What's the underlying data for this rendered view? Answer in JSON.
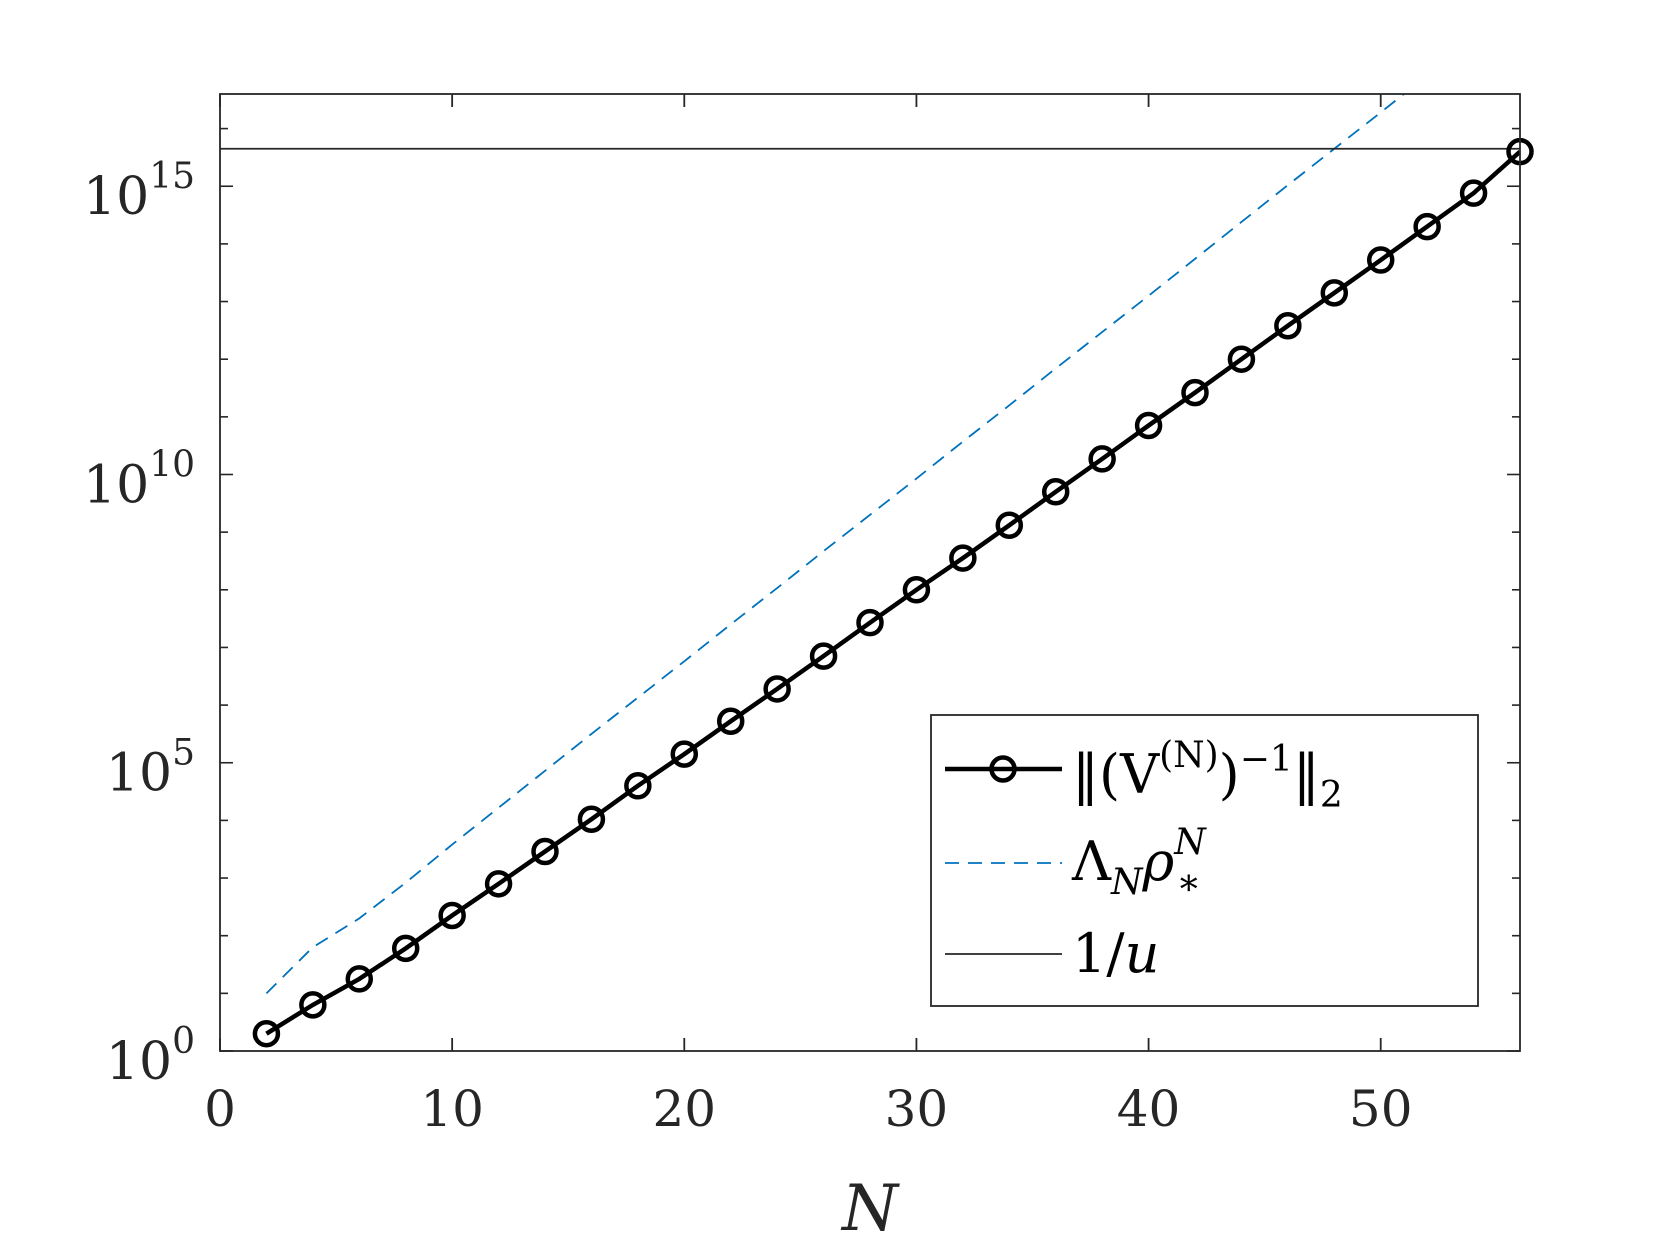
{
  "chart_data": {
    "type": "line",
    "xlabel": "N",
    "ylabel": "",
    "xlim": [
      0,
      56
    ],
    "ylim_exp": [
      0,
      16.6
    ],
    "log_y": true,
    "x_ticks": [
      0,
      10,
      20,
      30,
      40,
      50
    ],
    "y_ticks": [
      {
        "exp": 0,
        "base": "10",
        "sup": "0"
      },
      {
        "exp": 5,
        "base": "10",
        "sup": "5"
      },
      {
        "exp": 10,
        "base": "10",
        "sup": "10"
      },
      {
        "exp": 15,
        "base": "10",
        "sup": "15"
      }
    ],
    "grid": false,
    "legend_position": "lower-right",
    "series": [
      {
        "key": "inv_norm",
        "name": "‖(V(N))−1‖2",
        "label_parts": {
          "a": "‖(V",
          "sup1": "(N)",
          "b": ")",
          "sup2": "−1",
          "c": "‖",
          "sub": "2"
        },
        "color": "#000000",
        "style": "solid-marker",
        "x": [
          2,
          4,
          6,
          8,
          10,
          12,
          14,
          16,
          18,
          20,
          22,
          24,
          26,
          28,
          30,
          32,
          34,
          36,
          38,
          40,
          42,
          44,
          46,
          48,
          50,
          52,
          54,
          56
        ],
        "log10_y": [
          0.3,
          0.8,
          1.25,
          1.78,
          2.35,
          2.9,
          3.46,
          4.02,
          4.6,
          5.15,
          5.72,
          6.28,
          6.85,
          7.43,
          8.0,
          8.55,
          9.12,
          9.7,
          10.27,
          10.85,
          11.42,
          12.0,
          12.58,
          13.15,
          13.72,
          14.3,
          14.88,
          15.6
        ]
      },
      {
        "key": "lambda_rho",
        "name": "ΛNρ*N",
        "label_parts": {
          "a": "Λ",
          "sub1": "N",
          "b": "ρ",
          "sup": "N",
          "sub2": "*"
        },
        "color": "#0072BD",
        "style": "dashed",
        "x": [
          2,
          4,
          6,
          8,
          10,
          12,
          14,
          16,
          18,
          20,
          22,
          24,
          26,
          28,
          30,
          32,
          34,
          36,
          38,
          40,
          42,
          44,
          46,
          48,
          50,
          52,
          54
        ],
        "log10_y": [
          1.0,
          1.8,
          2.3,
          2.92,
          3.58,
          4.22,
          4.86,
          5.5,
          6.13,
          6.76,
          7.4,
          8.03,
          8.67,
          9.3,
          9.93,
          10.57,
          11.2,
          11.84,
          12.47,
          13.1,
          13.74,
          14.38,
          15.02,
          15.65,
          16.28,
          16.92,
          17.56
        ]
      },
      {
        "key": "one_over_u",
        "name": "1/u",
        "label_parts": {
          "a": "1/",
          "b": "u"
        },
        "color": "#262626",
        "style": "solid-thin",
        "x": [
          0,
          56
        ],
        "log10_y": [
          15.65,
          15.65
        ]
      }
    ]
  }
}
